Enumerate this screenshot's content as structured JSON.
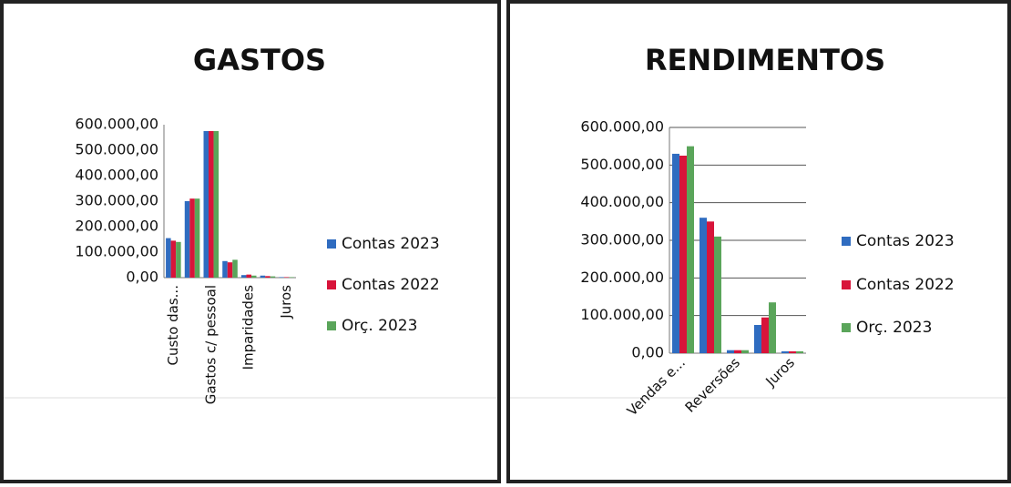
{
  "chart_data": [
    {
      "type": "bar",
      "title": "GASTOS",
      "categories": [
        "Custo das...",
        null,
        "Gastos c/ pessoal",
        null,
        "Imparidades",
        null,
        "Juros"
      ],
      "series": [
        {
          "name": "Contas 2023",
          "color": "#2f6cc0",
          "values": [
            155000,
            300000,
            575000,
            65000,
            10000,
            8000,
            2000
          ]
        },
        {
          "name": "Contas 2022",
          "color": "#d8143a",
          "values": [
            145000,
            310000,
            575000,
            60000,
            12000,
            6000,
            2000
          ]
        },
        {
          "name": "Orç. 2023",
          "color": "#5aa55a",
          "values": [
            140000,
            310000,
            575000,
            70000,
            8000,
            5000,
            2000
          ]
        }
      ],
      "ylim": [
        0,
        600000
      ],
      "yticks": [
        {
          "value": 0,
          "label": "0,00"
        },
        {
          "value": 100000,
          "label": "100.000,00"
        },
        {
          "value": 200000,
          "label": "200.000,00"
        },
        {
          "value": 300000,
          "label": "300.000,00"
        },
        {
          "value": 400000,
          "label": "400.000,00"
        },
        {
          "value": 500000,
          "label": "500.000,00"
        },
        {
          "value": 600000,
          "label": "600.000,00"
        }
      ],
      "grid": false,
      "legend": "right"
    },
    {
      "type": "bar",
      "title": "RENDIMENTOS",
      "categories": [
        "Vendas e...",
        null,
        "Reversões",
        null,
        "Juros"
      ],
      "series": [
        {
          "name": "Contas 2023",
          "color": "#2f6cc0",
          "values": [
            530000,
            360000,
            8000,
            75000,
            5000
          ]
        },
        {
          "name": "Contas 2022",
          "color": "#d8143a",
          "values": [
            525000,
            350000,
            8000,
            95000,
            5000
          ]
        },
        {
          "name": "Orç. 2023",
          "color": "#5aa55a",
          "values": [
            550000,
            310000,
            8000,
            135000,
            5000
          ]
        }
      ],
      "ylim": [
        0,
        600000
      ],
      "yticks": [
        {
          "value": 0,
          "label": "0,00"
        },
        {
          "value": 100000,
          "label": "100.000,00"
        },
        {
          "value": 200000,
          "label": "200.000,00"
        },
        {
          "value": 300000,
          "label": "300.000,00"
        },
        {
          "value": 400000,
          "label": "400.000,00"
        },
        {
          "value": 500000,
          "label": "500.000,00"
        },
        {
          "value": 600000,
          "label": "600.000,00"
        }
      ],
      "grid": true,
      "legend": "right"
    }
  ]
}
